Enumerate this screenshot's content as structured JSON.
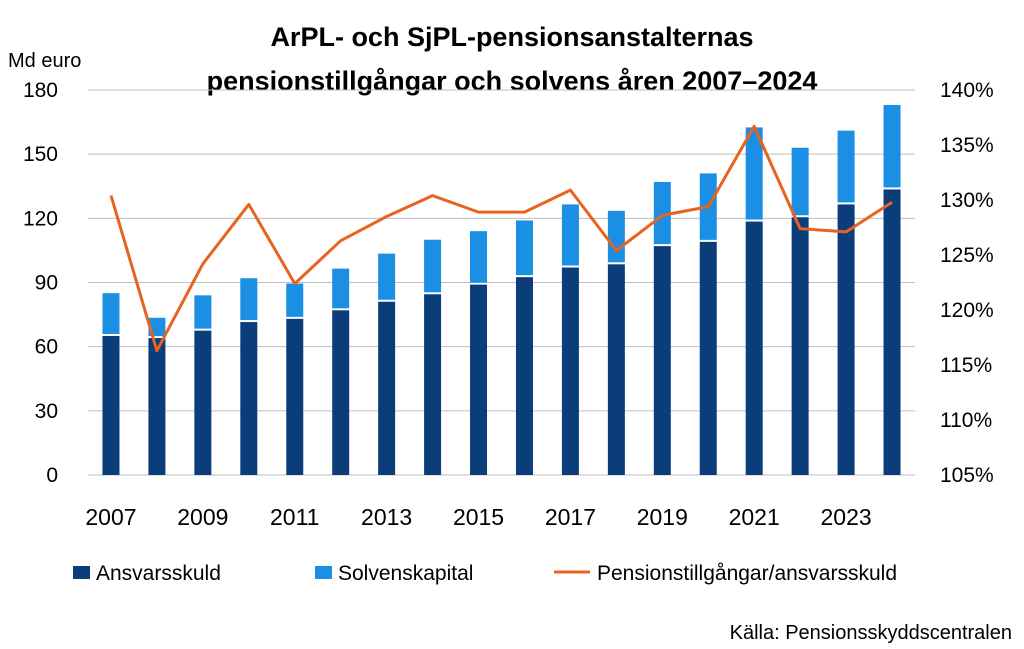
{
  "chart_data": {
    "type": "bar",
    "title_lines": [
      "ArPL- och SjPL-pensionsanstalternas",
      "pensionstillgångar och solvens åren 2007–2024"
    ],
    "y_unit_label": "Md euro",
    "years": [
      2007,
      2008,
      2009,
      2010,
      2011,
      2012,
      2013,
      2014,
      2015,
      2016,
      2017,
      2018,
      2019,
      2020,
      2021,
      2022,
      2023,
      2024
    ],
    "x_tick_labels": [
      "2007",
      "2009",
      "2011",
      "2013",
      "2015",
      "2017",
      "2019",
      "2021",
      "2023"
    ],
    "y_left": {
      "min": 0,
      "max": 180,
      "ticks": [
        "0",
        "30",
        "60",
        "90",
        "120",
        "150",
        "180"
      ]
    },
    "y_right": {
      "min": 105,
      "max": 140,
      "ticks": [
        "105%",
        "110%",
        "115%",
        "120%",
        "125%",
        "130%",
        "135%",
        "140%"
      ]
    },
    "grid": "horizontal",
    "legend_position": "bottom",
    "series": [
      {
        "name": "Ansvarsskuld",
        "kind": "stacked-bar",
        "axis": "left",
        "color": "#0a3d7a",
        "values": [
          65,
          64,
          67.5,
          71.5,
          73,
          77,
          81,
          84.5,
          89,
          92.5,
          97,
          98.5,
          107,
          109,
          118.5,
          120.5,
          126.5,
          133.5
        ]
      },
      {
        "name": "Solvenskapital",
        "kind": "stacked-bar",
        "axis": "left",
        "color": "#1a8fe3",
        "values": [
          20,
          9.5,
          16.5,
          20.5,
          16.5,
          19.5,
          22.5,
          25.5,
          25,
          26.5,
          29.5,
          25,
          30,
          32,
          44,
          32.5,
          34.5,
          39.5
        ]
      },
      {
        "name": "Pensionstillgångar/ansvarsskuld",
        "kind": "line",
        "axis": "right",
        "color": "#e8631f",
        "values": [
          130.4,
          116.3,
          124.2,
          129.6,
          122.4,
          126.3,
          128.5,
          130.4,
          128.9,
          128.9,
          130.9,
          125.4,
          128.6,
          129.4,
          136.7,
          127.4,
          127.1,
          129.8
        ]
      }
    ],
    "source": "Källa: Pensionsskyddscentralen"
  }
}
